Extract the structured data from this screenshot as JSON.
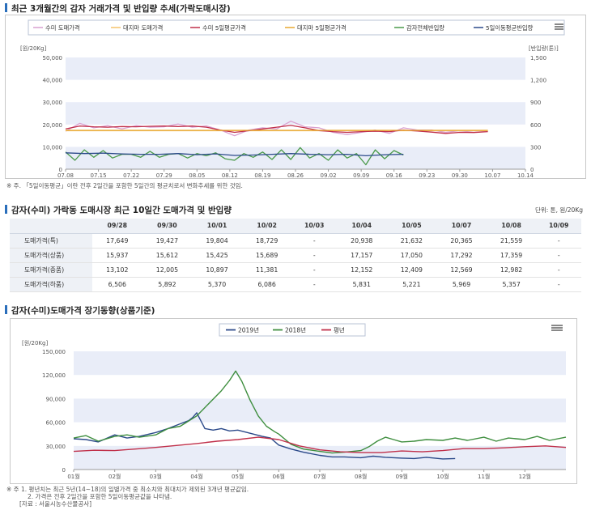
{
  "sections": {
    "chart1_title": "최근 3개월간의 감자 거래가격 및 반입량 추세(가락도매시장)",
    "table_title": "감자(수미) 가락동 도매시장 최근 10일간 도매가격 및 반입량",
    "chart2_title": "감자(수미)도매가격 장기동향(상품기준)"
  },
  "notes": {
    "chart1": "※ 주. 「5일이동평균」이란 전후 2일간을 포함한 5일간의 평균치로서 변화추세를 위한 것임.",
    "chart2": [
      "※ 주 1. 평년치는 최근 5년(14~18)의 일별가격 중 최소치와 최대치가 제외된 3개년 평균값임.",
      "2. 가격은 전후 2일간을 포함한 5일이동평균값을 나타냄.",
      "[자료 : 서울시농수산물공사]"
    ]
  },
  "table": {
    "unit": "단위: 톤, 원/20Kg",
    "columns": [
      "09/28",
      "09/30",
      "10/01",
      "10/02",
      "10/03",
      "10/04",
      "10/05",
      "10/07",
      "10/08",
      "10/09"
    ],
    "rows": [
      {
        "label": "도매가격(특)",
        "values": [
          "17,649",
          "19,427",
          "19,804",
          "18,729",
          "-",
          "20,938",
          "21,632",
          "20,365",
          "21,559",
          "-"
        ]
      },
      {
        "label": "도매가격(상품)",
        "values": [
          "15,937",
          "15,612",
          "15,425",
          "15,689",
          "-",
          "17,157",
          "17,050",
          "17,292",
          "17,359",
          "-"
        ]
      },
      {
        "label": "도매가격(중품)",
        "values": [
          "13,102",
          "12,005",
          "10,897",
          "11,381",
          "-",
          "12,152",
          "12,409",
          "12,569",
          "12,982",
          "-"
        ]
      },
      {
        "label": "도매가격(하품)",
        "values": [
          "6,506",
          "5,892",
          "5,370",
          "6,086",
          "-",
          "5,831",
          "5,221",
          "5,969",
          "5,357",
          "-"
        ]
      }
    ]
  },
  "chart_data": [
    {
      "type": "line",
      "legend_position": "top",
      "ylabel_left": "[원/20Kg]",
      "ylabel_right": "[반입량(톤)]",
      "ylim": [
        0,
        50000
      ],
      "ylim_right": [
        0,
        1500
      ],
      "yticks": [
        "0",
        "10,000",
        "20,000",
        "30,000",
        "40,000",
        "50,000"
      ],
      "yticks_right": [
        "0",
        "300",
        "600",
        "900",
        "1,200",
        "1,500"
      ],
      "xticks": [
        "07.08",
        "07.15",
        "07.22",
        "07.29",
        "08.05",
        "08.12",
        "08.19",
        "08.26",
        "09.02",
        "09.09",
        "09.16",
        "09.23",
        "09.30",
        "10.07",
        "10.14"
      ],
      "series": [
        {
          "name": "수미 도매가격",
          "color": "#d9a0d0",
          "axis": "left",
          "x": [
            0,
            3,
            6,
            9,
            12,
            15,
            18,
            21,
            24,
            27,
            30,
            33,
            36,
            39,
            42,
            45,
            48,
            51,
            54,
            57,
            60,
            63,
            66,
            69,
            72,
            75,
            78,
            81,
            84,
            87,
            90
          ],
          "values": [
            17000,
            20500,
            18500,
            19500,
            18000,
            19500,
            18800,
            19000,
            20200,
            18800,
            19400,
            17500,
            15000,
            17500,
            18500,
            18000,
            21500,
            19000,
            18500,
            16500,
            15500,
            16500,
            17500,
            16000,
            18500,
            17500,
            17500,
            16500,
            17200,
            16500,
            17000
          ]
        },
        {
          "name": "대지마 도매가격",
          "color": "#f5c26b",
          "axis": "left",
          "x": [
            0,
            90
          ],
          "values": [
            17200,
            17200
          ]
        },
        {
          "name": "수미 5일평균가격",
          "color": "#c0304a",
          "axis": "left",
          "x": [
            0,
            3,
            6,
            9,
            12,
            15,
            18,
            21,
            24,
            27,
            30,
            33,
            36,
            39,
            42,
            45,
            48,
            51,
            54,
            57,
            60,
            63,
            66,
            69,
            72,
            75,
            78,
            81,
            84,
            87,
            90
          ],
          "values": [
            18000,
            19300,
            19000,
            18800,
            19100,
            19000,
            19200,
            19300,
            19100,
            19300,
            18800,
            17500,
            16500,
            17200,
            18000,
            18800,
            19600,
            18500,
            17300,
            16800,
            16500,
            16800,
            17000,
            16800,
            17500,
            17100,
            16600,
            16000,
            16500,
            16400,
            16800
          ]
        },
        {
          "name": "대지마 5일평균가격",
          "color": "#e8a830",
          "axis": "left",
          "x": [
            0,
            90
          ],
          "values": [
            17400,
            17400
          ]
        },
        {
          "name": "감자전체반입량",
          "color": "#4a9a4a",
          "axis": "right",
          "x": [
            0,
            2,
            4,
            6,
            8,
            10,
            12,
            14,
            16,
            18,
            20,
            22,
            24,
            26,
            28,
            30,
            32,
            34,
            36,
            38,
            40,
            42,
            44,
            46,
            48,
            50,
            52,
            54,
            56,
            58,
            60,
            62,
            64,
            66,
            68,
            70,
            72
          ],
          "values": [
            230,
            120,
            260,
            160,
            250,
            150,
            200,
            200,
            160,
            240,
            160,
            200,
            210,
            150,
            210,
            180,
            220,
            140,
            120,
            210,
            160,
            230,
            130,
            260,
            130,
            290,
            150,
            210,
            120,
            260,
            150,
            210,
            60,
            260,
            140,
            250,
            190
          ]
        },
        {
          "name": "5일이동평균반입량",
          "color": "#2c4a8a",
          "axis": "right",
          "x": [
            0,
            4,
            8,
            12,
            16,
            20,
            24,
            28,
            32,
            36,
            40,
            44,
            48,
            52,
            56,
            60,
            64,
            68,
            72
          ],
          "values": [
            220,
            210,
            215,
            205,
            200,
            200,
            210,
            195,
            205,
            185,
            190,
            200,
            210,
            200,
            195,
            200,
            180,
            195,
            200
          ]
        }
      ]
    },
    {
      "type": "line",
      "legend_position": "top",
      "ylabel": "[원/20Kg]",
      "ylim": [
        0,
        150000
      ],
      "yticks": [
        "0",
        "30,000",
        "60,000",
        "90,000",
        "120,000",
        "150,000"
      ],
      "xticks": [
        "01월",
        "02월",
        "03월",
        "04월",
        "05월",
        "06월",
        "07월",
        "08월",
        "09월",
        "10월",
        "11월",
        "12월"
      ],
      "series": [
        {
          "name": "2019년",
          "color": "#2c4a8a",
          "x": [
            0,
            0.3,
            0.6,
            1.0,
            1.3,
            1.6,
            2.0,
            2.3,
            2.6,
            2.8,
            2.9,
            3.0,
            3.2,
            3.4,
            3.6,
            3.8,
            4.0,
            4.3,
            4.6,
            4.8,
            5.0,
            5.3,
            5.6,
            6.0,
            6.3,
            6.6,
            7.0,
            7.3,
            7.6,
            8.0,
            8.3,
            8.6,
            9.0,
            9.3
          ],
          "values": [
            39000,
            38000,
            35000,
            44000,
            40000,
            42000,
            47000,
            52000,
            58000,
            62000,
            66000,
            72000,
            52000,
            50000,
            52000,
            49000,
            50000,
            46000,
            42000,
            40000,
            31000,
            26000,
            22000,
            18000,
            16000,
            16000,
            15000,
            17000,
            15500,
            14500,
            14000,
            15500,
            13500,
            14000
          ]
        },
        {
          "name": "2018년",
          "color": "#3e8e3e",
          "x": [
            0,
            0.3,
            0.6,
            1.0,
            1.3,
            1.6,
            2.0,
            2.3,
            2.6,
            3.0,
            3.3,
            3.6,
            3.8,
            3.95,
            4.1,
            4.3,
            4.5,
            4.7,
            4.9,
            5.0,
            5.3,
            5.6,
            6.0,
            6.3,
            6.6,
            7.0,
            7.2,
            7.4,
            7.6,
            7.8,
            8.0,
            8.3,
            8.6,
            9.0,
            9.3,
            9.6,
            10.0,
            10.3,
            10.6,
            11.0,
            11.3,
            11.6,
            12.0
          ],
          "values": [
            40000,
            43000,
            36000,
            42000,
            44000,
            41000,
            44000,
            52000,
            55000,
            68000,
            84000,
            100000,
            113000,
            125000,
            112000,
            88000,
            68000,
            55000,
            48000,
            45000,
            32000,
            26000,
            23000,
            21000,
            22000,
            24000,
            29000,
            36000,
            41000,
            38000,
            35000,
            36000,
            38000,
            37000,
            40000,
            37000,
            41000,
            36000,
            40000,
            38000,
            42000,
            37000,
            41000
          ]
        },
        {
          "name": "평년",
          "color": "#c0304a",
          "x": [
            0,
            0.5,
            1.0,
            1.5,
            2.0,
            2.5,
            3.0,
            3.5,
            4.0,
            4.5,
            5.0,
            5.5,
            6.0,
            6.5,
            7.0,
            7.5,
            8.0,
            8.5,
            9.0,
            9.5,
            10.0,
            10.5,
            11.0,
            11.5,
            12.0
          ],
          "values": [
            23000,
            24500,
            24000,
            26000,
            28000,
            30500,
            33000,
            36000,
            38000,
            41000,
            38000,
            30000,
            25000,
            22500,
            21500,
            21500,
            23500,
            22500,
            24000,
            26500,
            26500,
            27500,
            29000,
            30000,
            28000
          ]
        }
      ]
    }
  ]
}
